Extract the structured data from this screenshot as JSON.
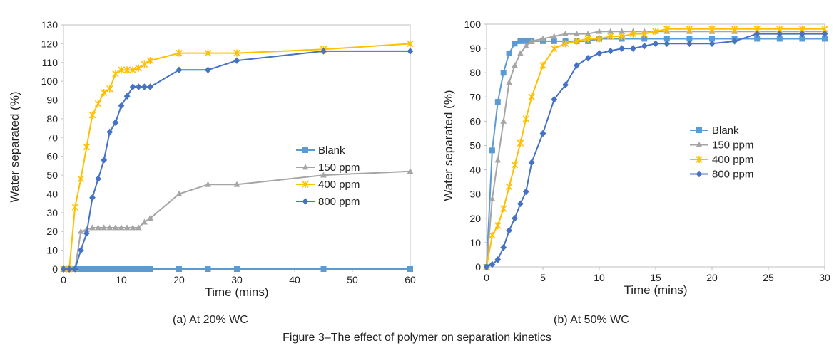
{
  "figure_caption": "Figure 3–The effect of polymer on separation kinetics",
  "chart_data": [
    {
      "type": "line",
      "caption": "(a) At 20% WC",
      "xlabel": "Time (mins)",
      "ylabel": "Water separated (%)",
      "xlim": [
        0,
        60
      ],
      "ylim": [
        0,
        130
      ],
      "xticks": [
        "0",
        "10",
        "20",
        "30",
        "40",
        "50",
        "60"
      ],
      "yticks": [
        "0",
        "10",
        "20",
        "30",
        "40",
        "50",
        "60",
        "70",
        "80",
        "90",
        "100",
        "110",
        "120",
        "130"
      ],
      "grid": false,
      "legend_position": "right",
      "series": [
        {
          "name": "Blank",
          "color": "#5b9bd5",
          "marker": "square",
          "x": [
            0,
            1,
            2,
            3,
            3.5,
            4,
            4.5,
            5,
            5.5,
            6,
            6.5,
            7,
            7.5,
            8,
            8.5,
            9,
            9.5,
            10,
            10.5,
            11,
            11.5,
            12,
            12.5,
            13,
            13.5,
            14,
            14.5,
            15,
            20,
            25,
            30,
            45,
            60
          ],
          "y": [
            0,
            0,
            0,
            0,
            0,
            0,
            0,
            0,
            0,
            0,
            0,
            0,
            0,
            0,
            0,
            0,
            0,
            0,
            0,
            0,
            0,
            0,
            0,
            0,
            0,
            0,
            0,
            0,
            0,
            0,
            0,
            0,
            0
          ]
        },
        {
          "name": "150 ppm",
          "color": "#a5a5a5",
          "marker": "triangle",
          "x": [
            0,
            1,
            2,
            3,
            4,
            5,
            6,
            7,
            8,
            9,
            10,
            11,
            12,
            13,
            14,
            15,
            20,
            25,
            30,
            45,
            60
          ],
          "y": [
            0,
            0,
            0,
            20,
            21,
            22,
            22,
            22,
            22,
            22,
            22,
            22,
            22,
            22,
            25,
            27,
            40,
            45,
            45,
            50,
            52
          ]
        },
        {
          "name": "400 ppm",
          "color": "#ffc000",
          "marker": "star",
          "x": [
            0,
            1,
            2,
            3,
            4,
            5,
            6,
            7,
            8,
            9,
            10,
            11,
            12,
            13,
            14,
            15,
            20,
            25,
            30,
            45,
            60
          ],
          "y": [
            0,
            0,
            33,
            48,
            65,
            82,
            88,
            94,
            96,
            104,
            106,
            106,
            106,
            107,
            109,
            111,
            115,
            115,
            115,
            117,
            120
          ]
        },
        {
          "name": "800 ppm",
          "color": "#4472c4",
          "marker": "diamond",
          "x": [
            0,
            1,
            2,
            3,
            4,
            5,
            6,
            7,
            8,
            9,
            10,
            11,
            12,
            13,
            14,
            15,
            20,
            25,
            30,
            45,
            60
          ],
          "y": [
            0,
            0,
            0,
            10,
            19,
            38,
            48,
            58,
            73,
            78,
            87,
            92,
            97,
            97,
            97,
            97,
            106,
            106,
            111,
            116,
            116
          ]
        }
      ]
    },
    {
      "type": "line",
      "caption": "(b) At 50% WC",
      "xlabel": "Time (mins)",
      "ylabel": "Water separated (%)",
      "xlim": [
        0,
        30
      ],
      "ylim": [
        0,
        100
      ],
      "xticks": [
        "0",
        "5",
        "10",
        "15",
        "20",
        "25",
        "30"
      ],
      "yticks": [
        "0",
        "10",
        "20",
        "30",
        "40",
        "50",
        "60",
        "70",
        "80",
        "90",
        "100"
      ],
      "grid": false,
      "legend_position": "center-right",
      "series": [
        {
          "name": "Blank",
          "color": "#5b9bd5",
          "marker": "square",
          "x": [
            0,
            0.5,
            1,
            1.5,
            2,
            2.5,
            3,
            3.5,
            4,
            5,
            6,
            7,
            8,
            9,
            10,
            12,
            14,
            16,
            18,
            20,
            22,
            24,
            26,
            28,
            30
          ],
          "y": [
            0,
            48,
            68,
            80,
            88,
            92,
            93,
            93,
            93,
            93,
            93,
            93,
            93,
            93,
            94,
            94,
            94,
            94,
            94,
            94,
            94,
            94,
            94,
            94,
            94
          ]
        },
        {
          "name": "150 ppm",
          "color": "#a5a5a5",
          "marker": "triangle",
          "x": [
            0,
            0.5,
            1,
            1.5,
            2,
            2.5,
            3,
            3.5,
            4,
            5,
            6,
            7,
            8,
            9,
            10,
            11,
            12,
            13,
            14,
            15,
            16,
            18,
            20,
            22,
            24,
            26,
            28,
            30
          ],
          "y": [
            0,
            28,
            44,
            60,
            76,
            83,
            88,
            91,
            93,
            94,
            95,
            96,
            96,
            96,
            97,
            97,
            97,
            97,
            97,
            97,
            97,
            97,
            97,
            97,
            97,
            97,
            97,
            97
          ]
        },
        {
          "name": "400 ppm",
          "color": "#ffc000",
          "marker": "star",
          "x": [
            0,
            0.5,
            1,
            1.5,
            2,
            2.5,
            3,
            3.5,
            4,
            5,
            6,
            7,
            8,
            9,
            10,
            11,
            12,
            13,
            14,
            15,
            16,
            18,
            20,
            22,
            24,
            26,
            28,
            30
          ],
          "y": [
            0,
            13,
            17,
            24,
            33,
            42,
            51,
            61,
            70,
            83,
            90,
            92,
            93,
            94,
            94,
            95,
            95,
            96,
            96,
            97,
            98,
            98,
            98,
            98,
            98,
            98,
            98,
            98
          ]
        },
        {
          "name": "800 ppm",
          "color": "#4472c4",
          "marker": "diamond",
          "x": [
            0,
            0.5,
            1,
            1.5,
            2,
            2.5,
            3,
            3.5,
            4,
            5,
            6,
            7,
            8,
            9,
            10,
            11,
            12,
            13,
            14,
            15,
            16,
            18,
            20,
            22,
            24,
            26,
            28,
            30
          ],
          "y": [
            0,
            1,
            3,
            8,
            15,
            20,
            26,
            31,
            43,
            55,
            69,
            75,
            83,
            86,
            88,
            89,
            90,
            90,
            91,
            92,
            92,
            92,
            92,
            93,
            96,
            96,
            96,
            96
          ]
        }
      ]
    }
  ]
}
